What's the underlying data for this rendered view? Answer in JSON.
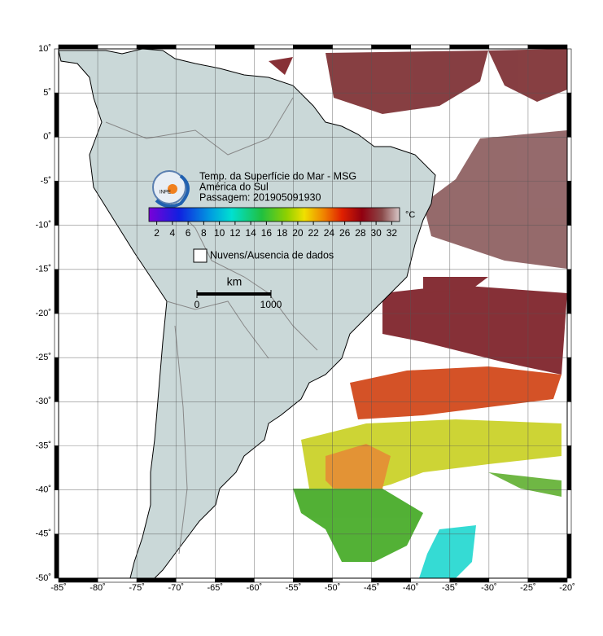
{
  "map": {
    "xlim": [
      -85,
      -20
    ],
    "ylim": [
      -50,
      10
    ],
    "xticks": [
      {
        "value": -85,
        "label": "-85˚"
      },
      {
        "value": -80,
        "label": "-80˚"
      },
      {
        "value": -75,
        "label": "-75˚"
      },
      {
        "value": -70,
        "label": "-70˚"
      },
      {
        "value": -65,
        "label": "-65˚"
      },
      {
        "value": -60,
        "label": "-60˚"
      },
      {
        "value": -55,
        "label": "-55˚"
      },
      {
        "value": -50,
        "label": "-50˚"
      },
      {
        "value": -45,
        "label": "-45˚"
      },
      {
        "value": -40,
        "label": "-40˚"
      },
      {
        "value": -35,
        "label": "-35˚"
      },
      {
        "value": -30,
        "label": "-30˚"
      },
      {
        "value": -25,
        "label": "-25˚"
      },
      {
        "value": -20,
        "label": "-20˚"
      }
    ],
    "yticks": [
      {
        "value": 10,
        "label": "10˚"
      },
      {
        "value": 5,
        "label": "5˚"
      },
      {
        "value": 0,
        "label": "0˚"
      },
      {
        "value": -5,
        "label": "-5˚"
      },
      {
        "value": -10,
        "label": "-10˚"
      },
      {
        "value": -15,
        "label": "-15˚"
      },
      {
        "value": -20,
        "label": "-20˚"
      },
      {
        "value": -25,
        "label": "-25˚"
      },
      {
        "value": -30,
        "label": "-30˚"
      },
      {
        "value": -35,
        "label": "-35˚"
      },
      {
        "value": -40,
        "label": "-40˚"
      },
      {
        "value": -45,
        "label": "-45˚"
      },
      {
        "value": -50,
        "label": "-50˚"
      }
    ],
    "grid": true
  },
  "legend": {
    "logo_text": "INPE",
    "title": "Temp. da Superfície do Mar - MSG",
    "region": "América do Sul",
    "pass": "Passagem: 201905091930",
    "colorbar": {
      "range": [
        1,
        33
      ],
      "ticks": [
        2,
        4,
        6,
        8,
        10,
        12,
        14,
        16,
        18,
        20,
        22,
        24,
        26,
        28,
        30,
        32
      ],
      "unit": "°C"
    },
    "no_data": "Nuvens/Ausencia de dados",
    "scale_bar": {
      "unit": "km",
      "ticks": [
        0,
        1000
      ]
    }
  }
}
